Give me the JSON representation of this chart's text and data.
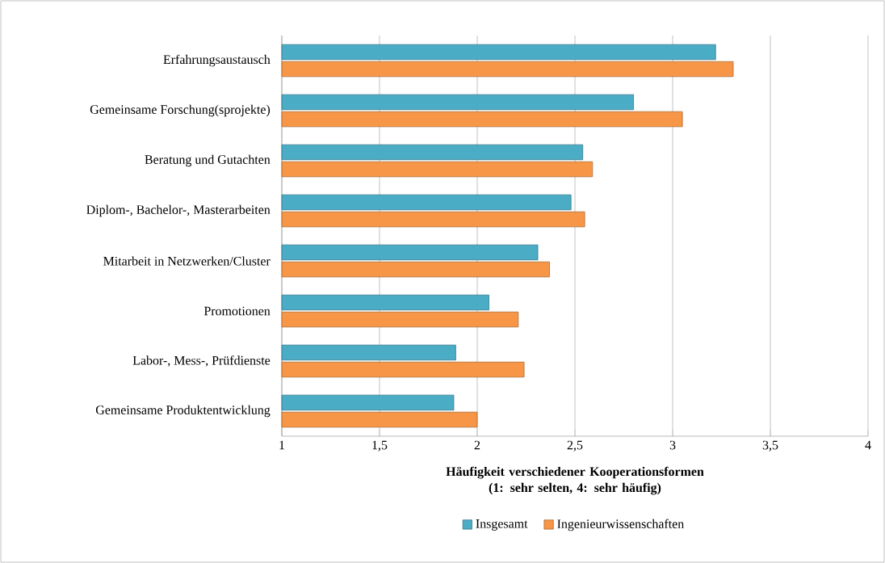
{
  "chart_data": {
    "type": "bar",
    "orientation": "horizontal",
    "categories": [
      "Erfahrungsaustausch",
      "Gemeinsame Forschung(sprojekte)",
      "Beratung und Gutachten",
      "Diplom-, Bachelor-, Masterarbeiten",
      "Mitarbeit in Netzwerken/Cluster",
      "Promotionen",
      "Labor-, Mess-, Prüfdienste",
      "Gemeinsame Produktentwicklung"
    ],
    "series": [
      {
        "name": "Insgesamt",
        "color": "#4bacc6",
        "values": [
          3.22,
          2.8,
          2.54,
          2.48,
          2.31,
          2.06,
          1.89,
          1.88
        ]
      },
      {
        "name": "Ingenieurwissenschaften",
        "color": "#f79646",
        "values": [
          3.31,
          3.05,
          2.59,
          2.55,
          2.37,
          2.21,
          2.24,
          2.0
        ]
      }
    ],
    "xlabel": "Häufigkeit verschiedener Kooperationsformen (1: sehr selten, 4: sehr häufig)",
    "xlim": [
      1,
      4
    ],
    "xticks": [
      1,
      {
        "value": 1.5,
        "label": "1,5"
      },
      2,
      {
        "value": 2.5,
        "label": "2,5"
      },
      3,
      {
        "value": 3.5,
        "label": "3,5"
      },
      4
    ],
    "grid": "x",
    "legend": "bottom"
  }
}
